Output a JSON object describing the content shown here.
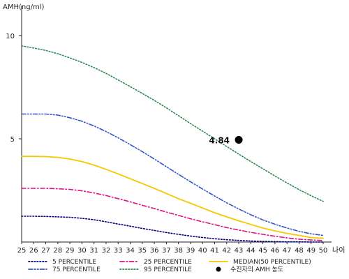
{
  "chart_data": {
    "type": "line",
    "ylabel": "AMH(ng/ml)",
    "xlabel": "나이",
    "xlim": [
      25,
      50
    ],
    "ylim": [
      0,
      11
    ],
    "x": [
      25,
      26,
      27,
      28,
      29,
      30,
      31,
      32,
      33,
      34,
      35,
      36,
      37,
      38,
      39,
      40,
      41,
      42,
      43,
      44,
      45,
      46,
      47,
      48,
      49,
      50
    ],
    "yticks": [
      "5",
      "10"
    ],
    "ytick_values": [
      5,
      10
    ],
    "series": [
      {
        "name": "5 PERCENTILE",
        "color": "#000080",
        "dash": "dot",
        "values": [
          1.25,
          1.25,
          1.24,
          1.22,
          1.2,
          1.15,
          1.08,
          0.98,
          0.87,
          0.77,
          0.66,
          0.56,
          0.46,
          0.37,
          0.29,
          0.22,
          0.16,
          0.11,
          0.08,
          0.05,
          0.03,
          0.02,
          0.01,
          0.01,
          0.0,
          0.0
        ]
      },
      {
        "name": "25 PERCENTILE",
        "color": "#dd1188",
        "dash": "dashdot",
        "values": [
          2.6,
          2.6,
          2.6,
          2.58,
          2.55,
          2.48,
          2.38,
          2.25,
          2.1,
          1.95,
          1.78,
          1.62,
          1.45,
          1.29,
          1.13,
          0.98,
          0.84,
          0.7,
          0.58,
          0.47,
          0.37,
          0.28,
          0.2,
          0.14,
          0.1,
          0.07
        ]
      },
      {
        "name": "MEDIAN(50 PERCENTILE)",
        "color": "#f5c800",
        "dash": "solid",
        "values": [
          4.15,
          4.15,
          4.14,
          4.1,
          4.02,
          3.9,
          3.73,
          3.52,
          3.3,
          3.07,
          2.83,
          2.6,
          2.35,
          2.1,
          1.88,
          1.65,
          1.42,
          1.22,
          1.03,
          0.85,
          0.68,
          0.54,
          0.42,
          0.32,
          0.22,
          0.18
        ]
      },
      {
        "name": "75 PERCENTILE",
        "color": "#3355cc",
        "dash": "dashdotdot",
        "values": [
          6.2,
          6.2,
          6.2,
          6.15,
          6.02,
          5.85,
          5.62,
          5.35,
          5.05,
          4.72,
          4.38,
          4.02,
          3.65,
          3.28,
          2.92,
          2.57,
          2.23,
          1.9,
          1.6,
          1.32,
          1.07,
          0.86,
          0.68,
          0.52,
          0.4,
          0.32
        ]
      },
      {
        "name": "95 PERCENTILE",
        "color": "#2e8b57",
        "dash": "dot",
        "values": [
          9.5,
          9.4,
          9.28,
          9.12,
          8.92,
          8.7,
          8.45,
          8.17,
          7.85,
          7.53,
          7.2,
          6.86,
          6.5,
          6.12,
          5.74,
          5.37,
          5.0,
          4.63,
          4.26,
          3.9,
          3.55,
          3.2,
          2.86,
          2.54,
          2.24,
          1.97
        ]
      }
    ],
    "annotation": {
      "label": "4.84",
      "x": 43,
      "y": 4.95
    },
    "legend": {
      "patient_label": "수진자의 AMH 농도"
    }
  }
}
